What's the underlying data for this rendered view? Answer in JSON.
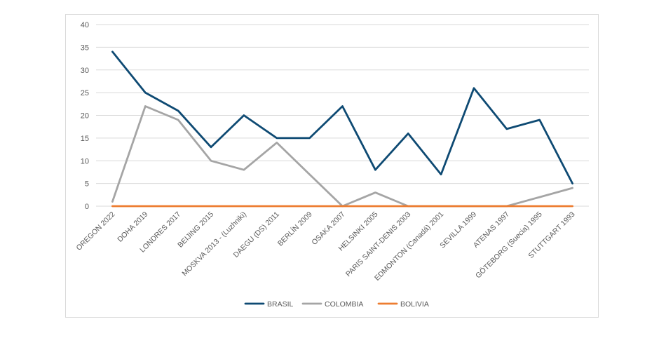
{
  "chart_data": {
    "type": "line",
    "title": "",
    "xlabel": "",
    "ylabel": "",
    "ylim": [
      0,
      40
    ],
    "yticks": [
      0,
      5,
      10,
      15,
      20,
      25,
      30,
      35,
      40
    ],
    "grid": true,
    "legend_position": "bottom",
    "categories": [
      "OREGON 2022",
      "DOHA 2019",
      "LONDRES 2017",
      "BEIJING 2015",
      "MOSKVA 2013 - (Luzhniki)",
      "DAEGU (DS) 2011",
      "BERLÍN 2009",
      "OSAKA 2007",
      "HELSINKI 2005",
      "PARIS SAINT-DENIS 2003",
      "EDMONTON (Canadá) 2001",
      "SEVILLA 1999",
      "ATENAS 1997",
      "GÖTEBORG (Suecia) 1995",
      "STUTTGART 1993"
    ],
    "series": [
      {
        "name": "BRASIL",
        "color": "#0e4a73",
        "values": [
          34,
          25,
          21,
          13,
          20,
          15,
          15,
          22,
          8,
          16,
          7,
          26,
          17,
          19,
          5
        ]
      },
      {
        "name": "COLOMBIA",
        "color": "#a5a5a5",
        "values": [
          1,
          22,
          19,
          10,
          8,
          14,
          7,
          0,
          3,
          0,
          0,
          0,
          0,
          2,
          4
        ]
      },
      {
        "name": "BOLIVIA",
        "color": "#ed7d31",
        "values": [
          0,
          0,
          0,
          0,
          0,
          0,
          0,
          0,
          0,
          0,
          0,
          0,
          0,
          0,
          0
        ]
      }
    ]
  }
}
